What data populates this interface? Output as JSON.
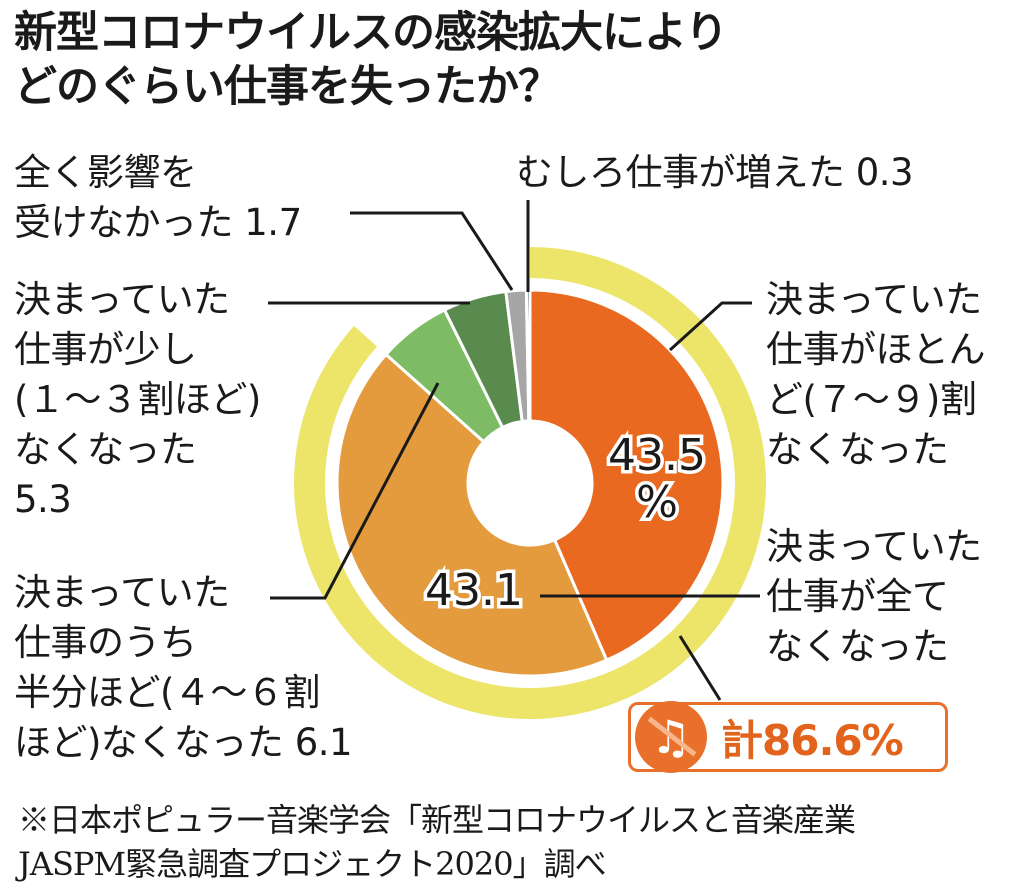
{
  "title_lines": [
    "新型コロナウイルスの感染拡大により",
    "どのぐらい仕事を失ったか？"
  ],
  "labels": {
    "unaffected": [
      "全く影響を",
      "受けなかった 1.7"
    ],
    "increased": [
      "むしろ仕事が増えた 0.3"
    ],
    "small_loss": [
      "決まっていた",
      "仕事が少し",
      "(１～３割ほど)",
      "なくなった",
      "5.3"
    ],
    "half_loss": [
      "決まっていた",
      "仕事のうち",
      "半分ほど(４～６割",
      "ほど)なくなった 6.1"
    ],
    "most_loss": [
      "決まっていた",
      "仕事がほとん",
      "ど(７～９)割",
      "なくなった"
    ],
    "all_loss": [
      "決まっていた",
      "仕事が全て",
      "なくなった"
    ]
  },
  "data_labels": {
    "all": [
      "43.5",
      "%"
    ],
    "most": "43.1"
  },
  "total": {
    "text": "計86.6%",
    "icon": "music-note-crossed-icon"
  },
  "source_lines": [
    "※日本ポピュラー音楽学会「新型コロナウイルスと音楽産業",
    "JASPM緊急調査プロジェクト2020」調べ"
  ],
  "chart_data": {
    "type": "pie",
    "donut": true,
    "unit": "%",
    "categories": [
      "決まっていた仕事が全てなくなった",
      "決まっていた仕事がほとんど(７～９)割なくなった",
      "決まっていた仕事のうち半分ほど(４～６割ほど)なくなった",
      "決まっていた仕事が少し(１～３割ほど)なくなった",
      "全く影響を受けなかった",
      "むしろ仕事が増えた"
    ],
    "values": [
      43.5,
      43.1,
      6.1,
      5.3,
      1.7,
      0.3
    ],
    "colors": [
      "#e8691f",
      "#e39b3e",
      "#7dbc64",
      "#5a8b4e",
      "#a6a6a6",
      "#595959"
    ],
    "highlight_ring": {
      "covers_first": 2,
      "value": 86.6,
      "color": "#ede46a"
    },
    "start_angle": "12 o'clock",
    "direction": "clockwise"
  }
}
